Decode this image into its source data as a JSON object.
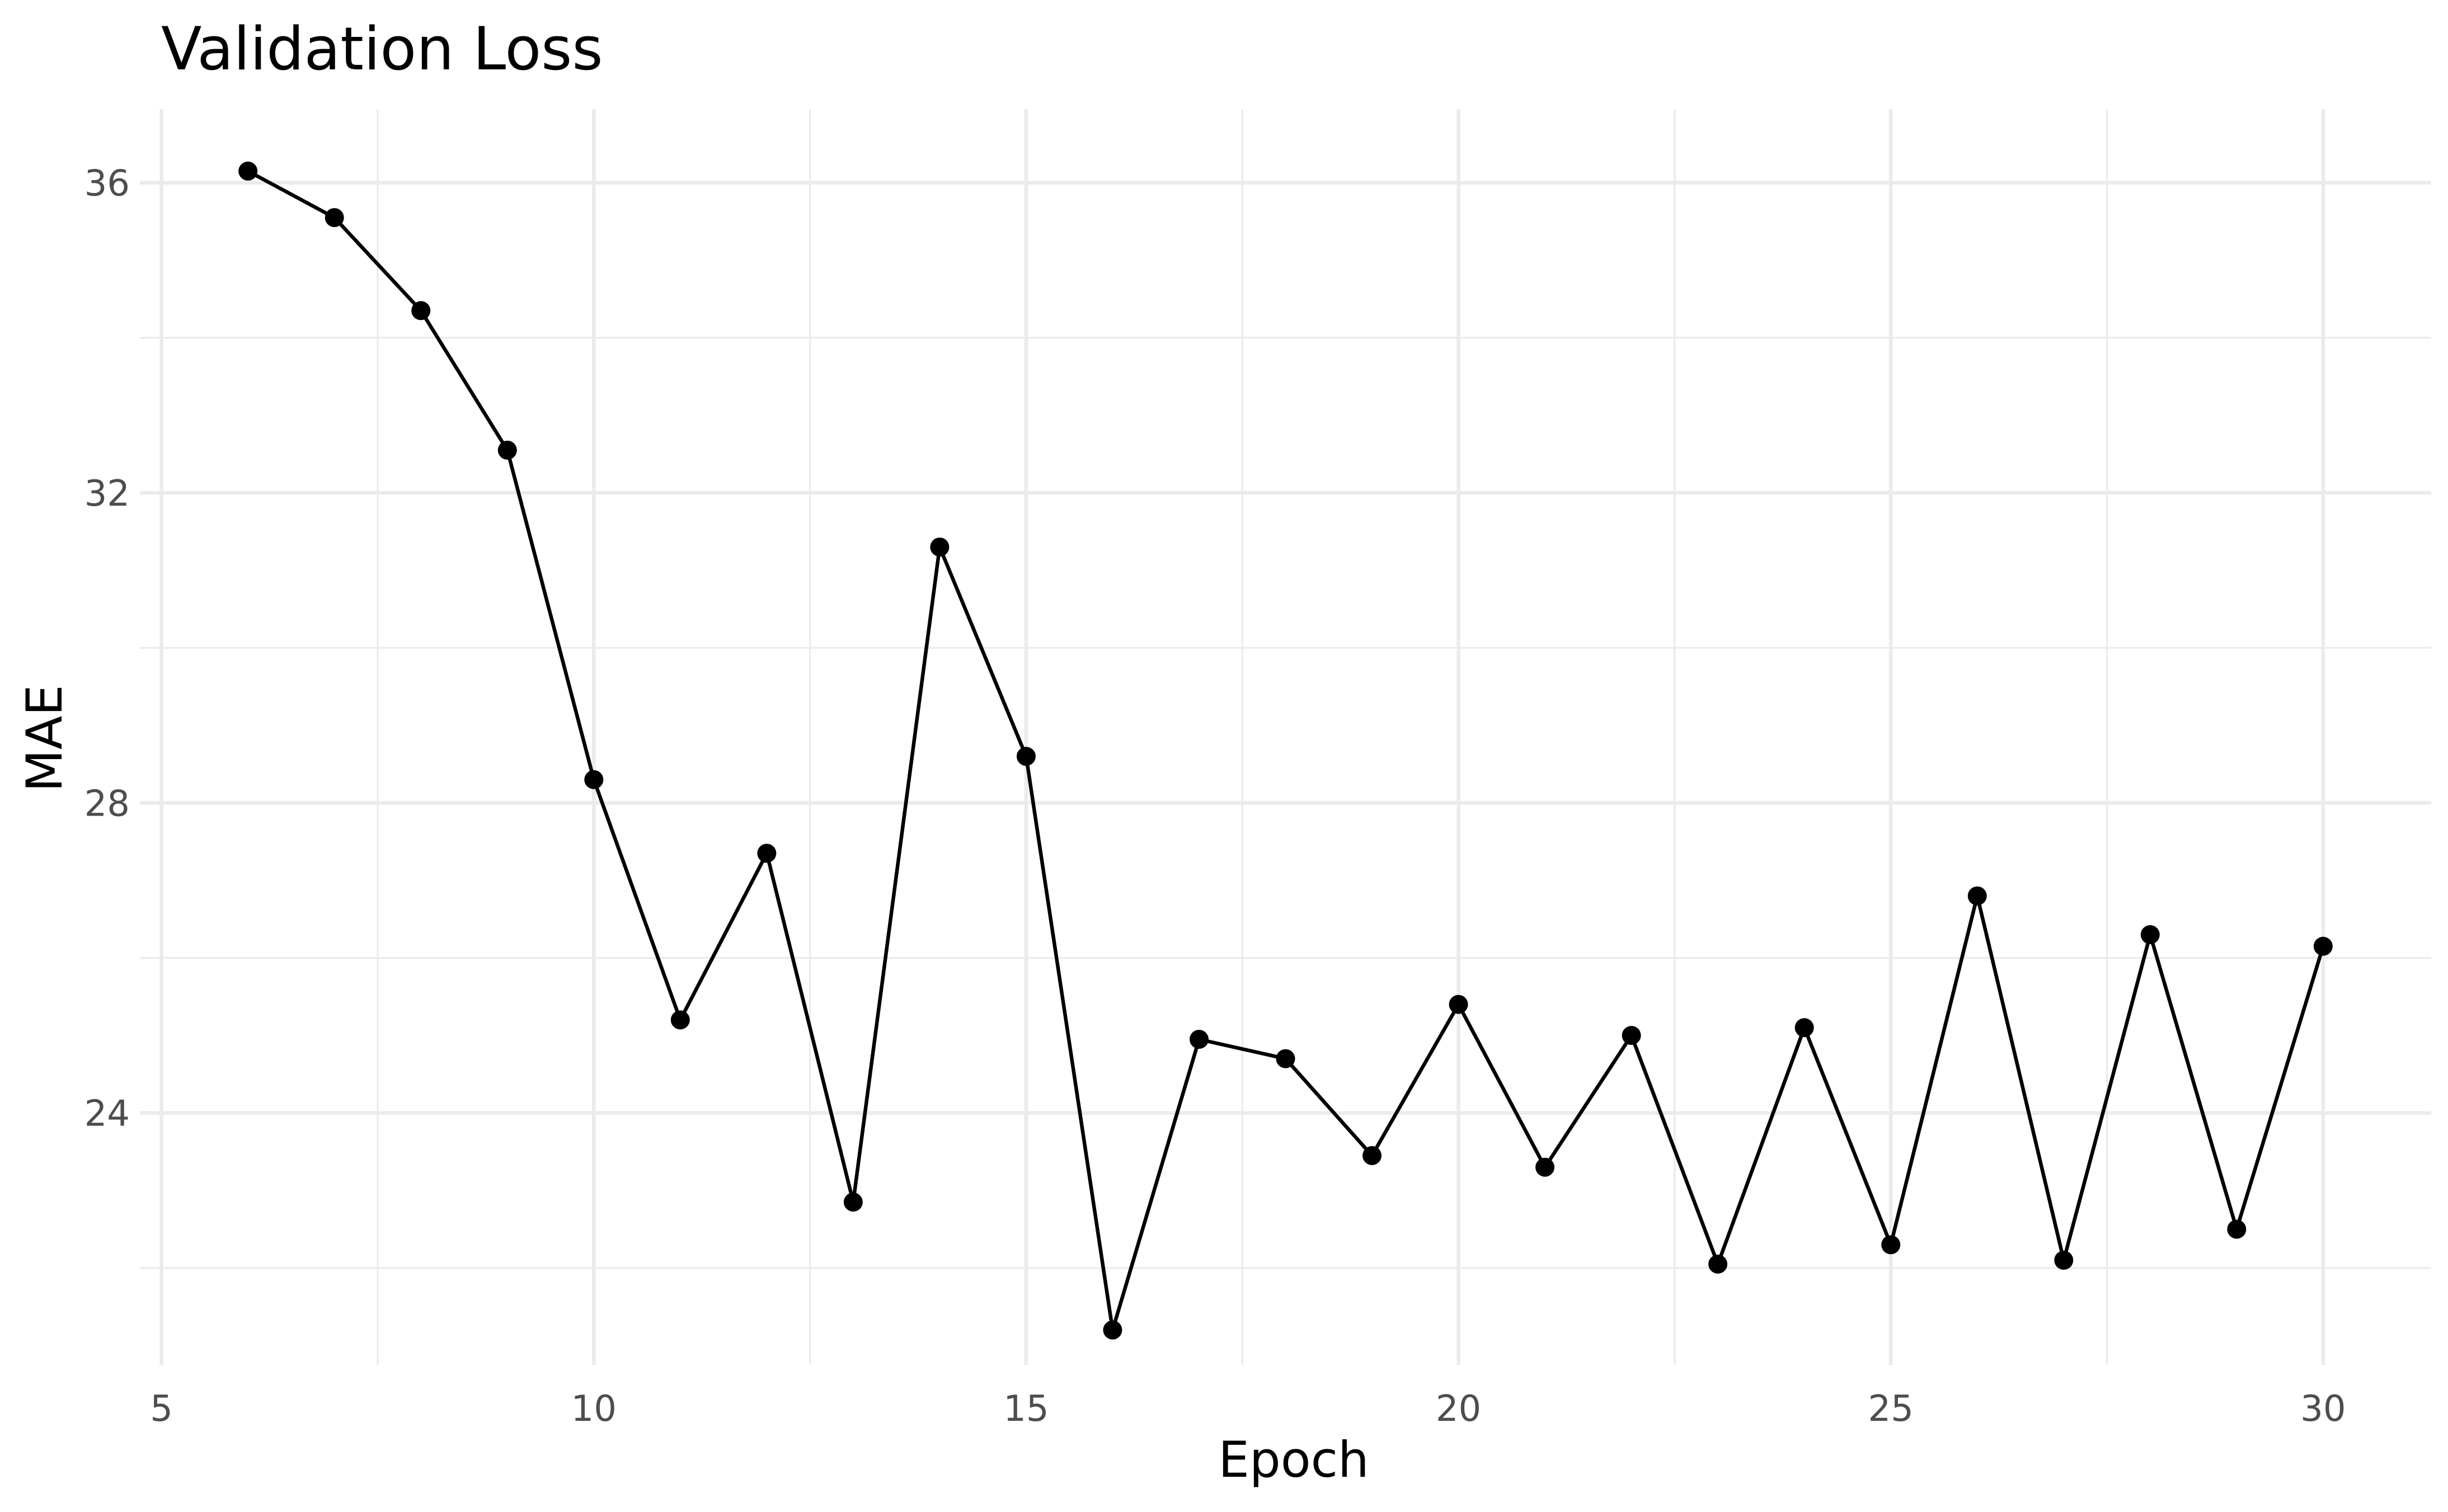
{
  "chart_data": {
    "type": "line",
    "title": "Validation Loss",
    "xlabel": "Epoch",
    "ylabel": "MAE",
    "xlim": [
      4.75,
      31.25
    ],
    "ylim": [
      20.75,
      36.95
    ],
    "x_ticks_major": [
      5,
      10,
      15,
      20,
      25,
      30
    ],
    "x_ticks_minor": [
      7.5,
      12.5,
      17.5,
      22.5,
      27.5
    ],
    "y_ticks_major": [
      24,
      28,
      32,
      36
    ],
    "y_ticks_minor": [
      22,
      26,
      30,
      34
    ],
    "grid": true,
    "legend": "none",
    "series": [
      {
        "color": "#000000",
        "x": [
          6,
          7,
          8,
          9,
          10,
          11,
          12,
          13,
          14,
          15,
          16,
          17,
          18,
          19,
          20,
          21,
          22,
          23,
          24,
          25,
          26,
          27,
          28,
          29,
          30
        ],
        "y": [
          36.15,
          35.55,
          34.35,
          32.55,
          28.3,
          25.2,
          27.35,
          22.85,
          31.3,
          28.6,
          21.2,
          24.95,
          24.7,
          23.45,
          25.4,
          23.3,
          25.0,
          22.05,
          25.1,
          22.3,
          26.8,
          22.1,
          26.3,
          22.5,
          26.15
        ]
      }
    ]
  }
}
